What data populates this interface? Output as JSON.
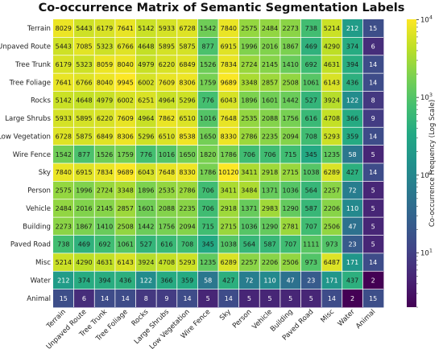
{
  "chart_data": {
    "type": "heatmap",
    "title": "Co-occurrence Matrix of Semantic Segmentation Labels",
    "colorbar_label": "Co-occurrence Frequency (Log Scale)",
    "colorbar_ticks": [
      {
        "base": "10",
        "exp": "1",
        "value": 10
      },
      {
        "base": "10",
        "exp": "2",
        "value": 100
      },
      {
        "base": "10",
        "exp": "3",
        "value": 1000
      },
      {
        "base": "10",
        "exp": "4",
        "value": 10000
      }
    ],
    "colormap": "viridis",
    "color_scale": "log",
    "color_range": [
      2,
      10120
    ],
    "labels": [
      "Terrain",
      "Unpaved Route",
      "Tree Trunk",
      "Tree Foliage",
      "Rocks",
      "Large Shrubs",
      "Low Vegetation",
      "Wire Fence",
      "Sky",
      "Person",
      "Vehicle",
      "Building",
      "Paved Road",
      "Misc",
      "Water",
      "Animal"
    ],
    "matrix": [
      [
        8029,
        5443,
        6179,
        7641,
        5142,
        5933,
        6728,
        1542,
        7840,
        2575,
        2484,
        2273,
        738,
        5214,
        212,
        15
      ],
      [
        5443,
        7085,
        5323,
        6766,
        4648,
        5895,
        5875,
        877,
        6915,
        1996,
        2016,
        1867,
        469,
        4290,
        374,
        6
      ],
      [
        6179,
        5323,
        8059,
        8040,
        4979,
        6220,
        6849,
        1526,
        7834,
        2724,
        2145,
        1410,
        692,
        4631,
        394,
        14
      ],
      [
        7641,
        6766,
        8040,
        9945,
        6002,
        7609,
        8306,
        1759,
        9689,
        3348,
        2857,
        2508,
        1061,
        6143,
        436,
        14
      ],
      [
        5142,
        4648,
        4979,
        6002,
        6251,
        4964,
        5296,
        776,
        6043,
        1896,
        1601,
        1442,
        527,
        3924,
        122,
        8
      ],
      [
        5933,
        5895,
        6220,
        7609,
        4964,
        7862,
        6510,
        1016,
        7648,
        2535,
        2088,
        1756,
        616,
        4708,
        366,
        9
      ],
      [
        6728,
        5875,
        6849,
        8306,
        5296,
        6510,
        8538,
        1650,
        8330,
        2786,
        2235,
        2094,
        708,
        5293,
        359,
        14
      ],
      [
        1542,
        877,
        1526,
        1759,
        776,
        1016,
        1650,
        1820,
        1786,
        706,
        706,
        715,
        345,
        1235,
        58,
        5
      ],
      [
        7840,
        6915,
        7834,
        9689,
        6043,
        7648,
        8330,
        1786,
        10120,
        3411,
        2918,
        2715,
        1038,
        6289,
        427,
        14
      ],
      [
        2575,
        1996,
        2724,
        3348,
        1896,
        2535,
        2786,
        706,
        3411,
        3484,
        1371,
        1036,
        564,
        2257,
        72,
        5
      ],
      [
        2484,
        2016,
        2145,
        2857,
        1601,
        2088,
        2235,
        706,
        2918,
        1371,
        2983,
        1290,
        587,
        2206,
        110,
        5
      ],
      [
        2273,
        1867,
        1410,
        2508,
        1442,
        1756,
        2094,
        715,
        2715,
        1036,
        1290,
        2781,
        707,
        2506,
        47,
        5
      ],
      [
        738,
        469,
        692,
        1061,
        527,
        616,
        708,
        345,
        1038,
        564,
        587,
        707,
        1111,
        973,
        23,
        5
      ],
      [
        5214,
        4290,
        4631,
        6143,
        3924,
        4708,
        5293,
        1235,
        6289,
        2257,
        2206,
        2506,
        973,
        6487,
        171,
        14
      ],
      [
        212,
        374,
        394,
        436,
        122,
        366,
        359,
        58,
        427,
        72,
        110,
        47,
        23,
        171,
        437,
        2
      ],
      [
        15,
        6,
        14,
        14,
        8,
        9,
        14,
        5,
        14,
        5,
        5,
        5,
        5,
        14,
        2,
        15
      ]
    ]
  }
}
